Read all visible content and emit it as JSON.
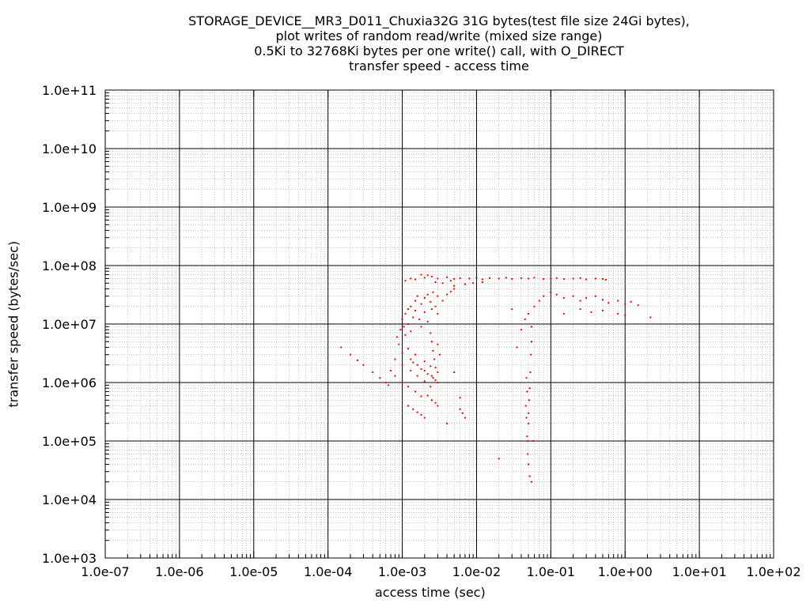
{
  "chart_data": {
    "type": "scatter",
    "title_lines": [
      "STORAGE_DEVICE__MR3_D011_Chuxia32G 31G bytes(test file size 24Gi bytes),",
      "plot writes of random read/write (mixed size range)",
      "0.5Ki to 32768Ki bytes per one write() call, with O_DIRECT",
      "transfer speed - access time"
    ],
    "xlabel": "access time (sec)",
    "ylabel": "transfer speed (bytes/sec)",
    "x_scale": "log",
    "y_scale": "log",
    "xlim": [
      1e-07,
      100
    ],
    "ylim": [
      1000,
      100000000000.0
    ],
    "x_tick_labels": [
      "1.0e-07",
      "1.0e-06",
      "1.0e-05",
      "1.0e-04",
      "1.0e-03",
      "1.0e-02",
      "1.0e-01",
      "1.0e+00",
      "1.0e+01",
      "1.0e+02"
    ],
    "y_tick_labels": [
      "1.0e+03",
      "1.0e+04",
      "1.0e+05",
      "1.0e+06",
      "1.0e+07",
      "1.0e+08",
      "1.0e+09",
      "1.0e+10",
      "1.0e+11"
    ],
    "grid": true,
    "marker_color": "#ff0000",
    "series": [
      {
        "points": [
          [
            0.00015,
            4000000.0
          ],
          [
            0.0002,
            3000000.0
          ],
          [
            0.00025,
            2400000.0
          ],
          [
            0.0003,
            2000000.0
          ],
          [
            0.0004,
            1500000.0
          ],
          [
            0.0005,
            1200000.0
          ],
          [
            0.0006,
            1000000.0
          ],
          [
            0.00065,
            900000.0
          ],
          [
            0.0007,
            1600000.0
          ],
          [
            0.0008,
            1300000.0
          ],
          [
            0.001,
            1000000.0
          ],
          [
            0.0012,
            850000.0
          ],
          [
            0.0015,
            700000.0
          ],
          [
            0.0018,
            580000.0
          ],
          [
            0.0008,
            2500000.0
          ],
          [
            0.001,
            2000000.0
          ],
          [
            0.0013,
            1600000.0
          ],
          [
            0.0016,
            1300000.0
          ],
          [
            0.002,
            1050000.0
          ],
          [
            0.0024,
            850000.0
          ],
          [
            0.001,
            3200000.0
          ],
          [
            0.0013,
            2500000.0
          ],
          [
            0.0016,
            2000000.0
          ],
          [
            0.002,
            1600000.0
          ],
          [
            0.0025,
            1300000.0
          ],
          [
            0.0028,
            1100000.0
          ],
          [
            0.0012,
            3800000.0
          ],
          [
            0.0015,
            3000000.0
          ],
          [
            0.002,
            2300000.0
          ],
          [
            0.0024,
            1900000.0
          ],
          [
            0.003,
            1500000.0
          ],
          [
            0.0014,
            2200000.0
          ],
          [
            0.0018,
            1700000.0
          ],
          [
            0.0022,
            1400000.0
          ],
          [
            0.0026,
            1200000.0
          ],
          [
            0.003,
            1000000.0
          ],
          [
            0.0012,
            400000.0
          ],
          [
            0.0014,
            350000.0
          ],
          [
            0.0016,
            310000.0
          ],
          [
            0.0018,
            280000.0
          ],
          [
            0.002,
            250000.0
          ],
          [
            0.0022,
            600000.0
          ],
          [
            0.0025,
            500000.0
          ],
          [
            0.0028,
            450000.0
          ],
          [
            0.003,
            400000.0
          ],
          [
            0.00085,
            6000000.0
          ],
          [
            0.0009,
            4500000.0
          ],
          [
            0.00095,
            8000000.0
          ],
          [
            0.001,
            12000000.0
          ],
          [
            0.00105,
            9000000.0
          ],
          [
            0.0011,
            6500000.0
          ],
          [
            0.0011,
            15000000.0
          ],
          [
            0.0012,
            18000000.0
          ],
          [
            0.0012,
            10000000.0
          ],
          [
            0.0013,
            7500000.0
          ],
          [
            0.0013,
            20000000.0
          ],
          [
            0.0014,
            13000000.0
          ],
          [
            0.0015,
            17000000.0
          ],
          [
            0.0015,
            25000000.0
          ],
          [
            0.0016,
            30000000.0
          ],
          [
            0.0017,
            12000000.0
          ],
          [
            0.0018,
            22000000.0
          ],
          [
            0.0018,
            9000000.0
          ],
          [
            0.002,
            28000000.0
          ],
          [
            0.002,
            16000000.0
          ],
          [
            0.0022,
            11000000.0
          ],
          [
            0.0022,
            32000000.0
          ],
          [
            0.0024,
            24000000.0
          ],
          [
            0.0025,
            18000000.0
          ],
          [
            0.0026,
            35000000.0
          ],
          [
            0.0028,
            20000000.0
          ],
          [
            0.003,
            15000000.0
          ],
          [
            0.003,
            30000000.0
          ],
          [
            0.0035,
            25000000.0
          ],
          [
            0.004,
            32000000.0
          ],
          [
            0.0045,
            36000000.0
          ],
          [
            0.005,
            40000000.0
          ],
          [
            0.0025,
            5000000.0
          ],
          [
            0.0026,
            3500000.0
          ],
          [
            0.0027,
            2500000.0
          ],
          [
            0.0028,
            1800000.0
          ],
          [
            0.003,
            4500000.0
          ],
          [
            0.0032,
            3000000.0
          ],
          [
            0.0024,
            7000000.0
          ],
          [
            0.0011,
            55000000.0
          ],
          [
            0.0013,
            60000000.0
          ],
          [
            0.0015,
            58000000.0
          ],
          [
            0.002,
            62000000.0
          ],
          [
            0.0025,
            65000000.0
          ],
          [
            0.003,
            60000000.0
          ],
          [
            0.004,
            63000000.0
          ],
          [
            0.005,
            59000000.0
          ],
          [
            0.006,
            61000000.0
          ],
          [
            0.008,
            60000000.0
          ],
          [
            0.01,
            62000000.0
          ],
          [
            0.012,
            58000000.0
          ],
          [
            0.015,
            61000000.0
          ],
          [
            0.02,
            60000000.0
          ],
          [
            0.025,
            62000000.0
          ],
          [
            0.03,
            59000000.0
          ],
          [
            0.04,
            61000000.0
          ],
          [
            0.05,
            60000000.0
          ],
          [
            0.06,
            62000000.0
          ],
          [
            0.08,
            59000000.0
          ],
          [
            0.1,
            60000000.0
          ],
          [
            0.12,
            61000000.0
          ],
          [
            0.15,
            59000000.0
          ],
          [
            0.2,
            60000000.0
          ],
          [
            0.25,
            61000000.0
          ],
          [
            0.3,
            58000000.0
          ],
          [
            0.4,
            60000000.0
          ],
          [
            0.5,
            59000000.0
          ],
          [
            0.55,
            57000000.0
          ],
          [
            0.0018,
            70000000.0
          ],
          [
            0.0022,
            68000000.0
          ],
          [
            0.0028,
            52000000.0
          ],
          [
            0.0035,
            50000000.0
          ],
          [
            0.0045,
            55000000.0
          ],
          [
            0.005,
            45000000.0
          ],
          [
            0.007,
            48000000.0
          ],
          [
            0.009,
            50000000.0
          ],
          [
            0.012,
            52000000.0
          ],
          [
            0.04,
            8000000.0
          ],
          [
            0.035,
            4000000.0
          ],
          [
            0.03,
            18000000.0
          ],
          [
            0.045,
            12000000.0
          ],
          [
            0.05,
            15000000.0
          ],
          [
            0.06,
            20000000.0
          ],
          [
            0.07,
            25000000.0
          ],
          [
            0.08,
            30000000.0
          ],
          [
            0.1,
            35000000.0
          ],
          [
            0.12,
            32000000.0
          ],
          [
            0.15,
            28000000.0
          ],
          [
            0.2,
            30000000.0
          ],
          [
            0.25,
            25000000.0
          ],
          [
            0.3,
            28000000.0
          ],
          [
            0.4,
            30000000.0
          ],
          [
            0.5,
            26000000.0
          ],
          [
            0.6,
            23000000.0
          ],
          [
            0.8,
            25000000.0
          ],
          [
            1.0,
            22000000.0
          ],
          [
            1.2,
            24000000.0
          ],
          [
            1.5,
            21000000.0
          ],
          [
            2.2,
            13000000.0
          ],
          [
            0.15,
            15000000.0
          ],
          [
            0.25,
            18000000.0
          ],
          [
            0.35,
            16000000.0
          ],
          [
            0.5,
            17000000.0
          ],
          [
            0.8,
            15000000.0
          ],
          [
            1.0,
            14000000.0
          ],
          [
            0.055,
            9000000.0
          ],
          [
            0.055,
            5000000.0
          ],
          [
            0.054,
            3000000.0
          ],
          [
            0.053,
            1500000.0
          ],
          [
            0.052,
            800000.0
          ],
          [
            0.051,
            500000.0
          ],
          [
            0.05,
            300000.0
          ],
          [
            0.05,
            200000.0
          ],
          [
            0.049,
            100000.0
          ],
          [
            0.049,
            60000.0
          ],
          [
            0.05,
            40000.0
          ],
          [
            0.052,
            25000.0
          ],
          [
            0.055,
            20000.0
          ],
          [
            0.058,
            100000.0
          ],
          [
            0.048,
            120000.0
          ],
          [
            0.047,
            250000.0
          ],
          [
            0.046,
            400000.0
          ],
          [
            0.048,
            700000.0
          ],
          [
            0.047,
            1200000.0
          ],
          [
            0.005,
            1500000.0
          ],
          [
            0.006,
            350000.0
          ],
          [
            0.007,
            250000.0
          ],
          [
            0.0065,
            300000.0
          ],
          [
            0.02,
            50000.0
          ],
          [
            0.004,
            200000.0
          ],
          [
            0.006,
            550000.0
          ]
        ]
      }
    ]
  }
}
